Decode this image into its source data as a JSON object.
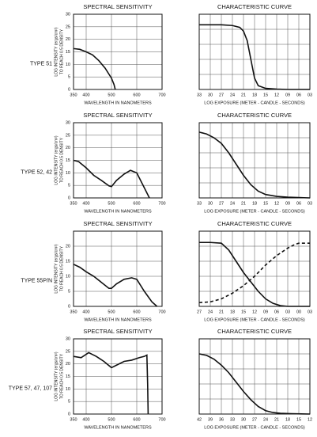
{
  "row_labels": [
    "TYPE 51",
    "TYPE 52, 42",
    "TYPE 55P/N",
    "TYPE 57, 47, 107"
  ],
  "chart_data": [
    {
      "type": "line",
      "title": "SPECTRAL SENSITIVITY",
      "xlabel": "WAVELENGTH IN NANOMETERS",
      "ylabel": [
        "LOG INTENSITY (ergs/cm²)",
        "TO REACH 0.5 DENSITY"
      ],
      "xlim": [
        350,
        700
      ],
      "xticks": [
        350,
        400,
        500,
        600,
        700
      ],
      "ylim": [
        0,
        30
      ],
      "yticks": [
        0,
        5,
        10,
        15,
        20,
        25,
        30
      ],
      "grid": true,
      "color": "#111",
      "series": [
        {
          "x": [
            350,
            375,
            400,
            425,
            450,
            475,
            500,
            510,
            515
          ],
          "values": [
            16.3,
            16,
            15,
            13.8,
            11.5,
            8.5,
            4.5,
            2,
            0
          ]
        }
      ]
    },
    {
      "type": "line",
      "title": "CHARACTERISTIC CURVE",
      "xlabel": "LOG EXPOSURE (METER - CANDLE - SECONDS)",
      "xlim": [
        33,
        3
      ],
      "xticks": [
        33,
        30,
        27,
        24,
        21,
        18,
        15,
        12,
        {
          "value": 9,
          "label": "09"
        },
        {
          "value": 6,
          "label": "06"
        },
        {
          "value": 3,
          "label": "03"
        }
      ],
      "ylim": [
        0,
        20
      ],
      "ygrid": [
        4,
        8,
        12,
        16
      ],
      "grid": true,
      "color": "#111",
      "series": [
        {
          "x": [
            33,
            30,
            27,
            24,
            22,
            21,
            20,
            19,
            18,
            17,
            15,
            12,
            9,
            6,
            3
          ],
          "values": [
            17.2,
            17.2,
            17.2,
            17,
            16.5,
            15.5,
            13,
            8,
            3,
            1,
            0.3,
            0.1,
            0,
            0,
            0
          ]
        }
      ]
    },
    {
      "type": "line",
      "title": "SPECTRAL SENSITIVITY",
      "xlabel": "WAVELENGTH IN NANOMETERS",
      "ylabel": [
        "LOG INTENSITY (ergs/cm²)",
        "TO REACH 0.5 DENSITY"
      ],
      "xlim": [
        350,
        700
      ],
      "xticks": [
        350,
        400,
        500,
        600,
        700
      ],
      "ylim": [
        0,
        30
      ],
      "yticks": [
        0,
        5,
        10,
        15,
        20,
        25,
        30
      ],
      "grid": true,
      "color": "#111",
      "series": [
        {
          "x": [
            350,
            370,
            400,
            430,
            460,
            490,
            500,
            520,
            550,
            575,
            600,
            625,
            650
          ],
          "values": [
            15,
            14.5,
            12,
            9,
            7,
            4.8,
            4.5,
            7,
            9.5,
            11,
            10,
            5,
            0
          ]
        }
      ]
    },
    {
      "type": "line",
      "title": "CHARACTERISTIC CURVE",
      "xlabel": "LOG EXPOSURE (METER - CANDLE - SECONDS)",
      "xlim": [
        33,
        3
      ],
      "xticks": [
        33,
        30,
        27,
        24,
        21,
        18,
        15,
        12,
        {
          "value": 9,
          "label": "09"
        },
        {
          "value": 6,
          "label": "06"
        },
        {
          "value": 3,
          "label": "03"
        }
      ],
      "ylim": [
        0,
        20
      ],
      "ygrid": [
        4,
        8,
        12,
        16
      ],
      "grid": true,
      "color": "#111",
      "series": [
        {
          "x": [
            33,
            31,
            29,
            27,
            25,
            23,
            21,
            19,
            17,
            15,
            12,
            9,
            6,
            3
          ],
          "values": [
            17.5,
            17,
            16,
            14.5,
            12,
            9,
            6,
            3.5,
            1.8,
            0.9,
            0.4,
            0.2,
            0.1,
            0
          ]
        }
      ]
    },
    {
      "type": "line",
      "title": "SPECTRAL SENSITIVITY",
      "xlabel": "WAVELENGTH IN NANOMETERS",
      "ylabel": [
        "LOG INTENSITY (ergs/cm²)",
        "TO REACH 0.5 DENSITY"
      ],
      "xlim": [
        350,
        700
      ],
      "xticks": [
        350,
        400,
        500,
        600,
        700
      ],
      "ylim": [
        0,
        25
      ],
      "yticks": [
        0,
        5,
        10,
        15,
        20
      ],
      "grid": true,
      "color": "#111",
      "series": [
        {
          "x": [
            350,
            375,
            400,
            430,
            460,
            490,
            500,
            520,
            550,
            580,
            600,
            630,
            660,
            680
          ],
          "values": [
            14,
            13,
            11.5,
            10,
            8,
            6,
            6,
            7.5,
            9,
            9.5,
            9,
            5,
            1.5,
            0
          ]
        }
      ]
    },
    {
      "type": "line",
      "title": "CHARACTERISTIC CURVE",
      "xlabel": "LOG EXPOSURE (METER - CANDLE - SECONDS)",
      "xlim": [
        27,
        -3
      ],
      "xticks": [
        27,
        24,
        21,
        18,
        15,
        12,
        {
          "value": 9,
          "label": "09"
        },
        {
          "value": 6,
          "label": "06"
        },
        {
          "value": 3,
          "label": "03"
        },
        {
          "value": 0,
          "label": "00"
        },
        {
          "value": -3,
          "label": "03"
        }
      ],
      "ylim": [
        0,
        20
      ],
      "ygrid": [
        4,
        8,
        12,
        16
      ],
      "grid": true,
      "color": "#111",
      "series": [
        {
          "x": [
            27,
            24,
            21,
            19,
            17,
            15,
            13,
            11,
            9,
            7,
            5,
            3,
            0,
            -3
          ],
          "values": [
            17,
            17,
            16.8,
            15,
            12,
            9,
            6.5,
            4,
            2,
            0.8,
            0.2,
            0,
            0,
            0
          ]
        },
        {
          "x": [
            27,
            24,
            21,
            18,
            15,
            12,
            9,
            6,
            3,
            1,
            0,
            -3
          ],
          "values": [
            1,
            1.2,
            2,
            3.5,
            5.5,
            8,
            11,
            13.5,
            15.5,
            16.5,
            16.8,
            16.8
          ],
          "dash": true
        }
      ]
    },
    {
      "type": "line",
      "title": "SPECTRAL SENSITIVITY",
      "xlabel": "WAVELENGTH IN NANOMETERS",
      "ylabel": [
        "LOG INTENSITY (ergs/cm²)",
        "TO REACH 0.5 DENSITY"
      ],
      "xlim": [
        350,
        700
      ],
      "xticks": [
        350,
        400,
        500,
        600,
        700
      ],
      "ylim": [
        0,
        30
      ],
      "yticks": [
        0,
        5,
        10,
        15,
        20,
        25,
        30
      ],
      "grid": true,
      "color": "#111",
      "series": [
        {
          "x": [
            350,
            380,
            410,
            440,
            470,
            500,
            520,
            550,
            580,
            610,
            630,
            640,
            643,
            645
          ],
          "values": [
            23,
            22.5,
            24.5,
            23,
            21,
            18.5,
            19.5,
            21,
            21.5,
            22.5,
            23,
            23.5,
            12,
            0
          ]
        }
      ]
    },
    {
      "type": "line",
      "title": "CHARACTERISTIC CURVE",
      "xlabel": "LOG EXPOSURE (METER - CANDLE - SECONDS)",
      "xlim": [
        42,
        12
      ],
      "xticks": [
        42,
        39,
        36,
        33,
        30,
        27,
        24,
        21,
        18,
        15,
        12
      ],
      "ylim": [
        0,
        20
      ],
      "ygrid": [
        4,
        8,
        12,
        16
      ],
      "grid": true,
      "color": "#111",
      "series": [
        {
          "x": [
            42,
            40,
            38,
            36,
            34,
            32,
            30,
            28,
            26,
            24,
            22,
            20,
            17,
            12
          ],
          "values": [
            16,
            15.6,
            14.6,
            13,
            11,
            8.5,
            6,
            3.8,
            2,
            0.9,
            0.4,
            0.2,
            0.1,
            0
          ]
        }
      ]
    }
  ]
}
